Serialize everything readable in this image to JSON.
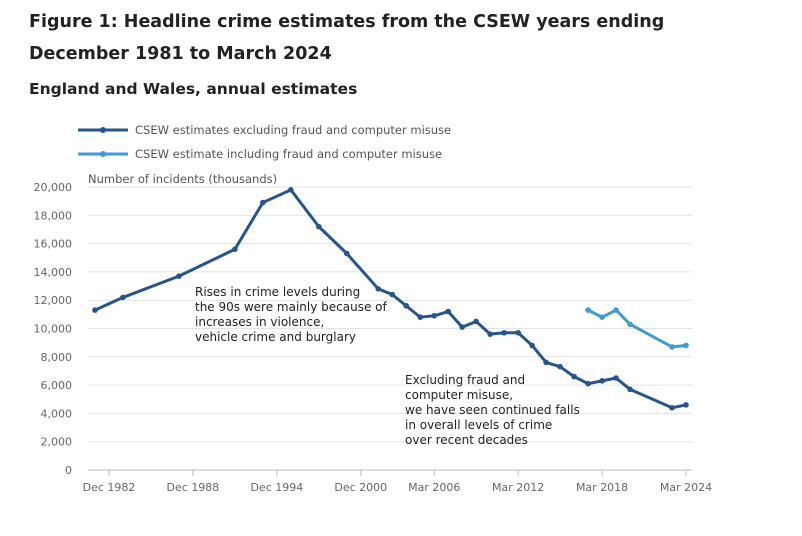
{
  "title": "Figure 1: Headline crime estimates from the CSEW years ending December 1981 to March 2024",
  "subtitle": "England and Wales, annual estimates",
  "chart_data": {
    "type": "line",
    "ylabel": "Number of incidents (thousands)",
    "ylim": [
      0,
      20000
    ],
    "yticks": [
      "0",
      "2,000",
      "4,000",
      "6,000",
      "8,000",
      "10,000",
      "12,000",
      "14,000",
      "16,000",
      "18,000",
      "20,000"
    ],
    "xticks": [
      "Dec 1982",
      "Dec 1988",
      "Dec 1994",
      "Dec 2000",
      "Mar 2006",
      "Mar 2012",
      "Mar 2018",
      "Mar 2024"
    ],
    "grid": true,
    "legend": "top-left",
    "series": [
      {
        "name": "CSEW estimates excluding fraud and computer misuse",
        "color": "#27548a",
        "x": [
          "Dec 1981",
          "Dec 1983",
          "Dec 1987",
          "Dec 1991",
          "Dec 1993",
          "Dec 1995",
          "Dec 1997",
          "Dec 1999",
          "Mar 2002",
          "Mar 2003",
          "Mar 2004",
          "Mar 2005",
          "Mar 2006",
          "Mar 2007",
          "Mar 2008",
          "Mar 2009",
          "Mar 2010",
          "Mar 2011",
          "Mar 2012",
          "Mar 2013",
          "Mar 2014",
          "Mar 2015",
          "Mar 2016",
          "Mar 2017",
          "Mar 2018",
          "Mar 2019",
          "Mar 2020",
          "Mar 2023",
          "Mar 2024"
        ],
        "values": [
          11300,
          12200,
          13700,
          15600,
          18900,
          19800,
          17200,
          15300,
          12800,
          12400,
          11600,
          10800,
          10900,
          11200,
          10100,
          10500,
          9600,
          9700,
          9700,
          8800,
          7600,
          7300,
          6600,
          6100,
          6300,
          6500,
          5700,
          4400,
          4600
        ]
      },
      {
        "name": "CSEW estimate including fraud and computer misuse",
        "color": "#3f9bd1",
        "x": [
          "Mar 2017",
          "Mar 2018",
          "Mar 2019",
          "Mar 2020",
          "Mar 2023",
          "Mar 2024"
        ],
        "values": [
          11300,
          10800,
          11300,
          10300,
          8700,
          8800
        ]
      }
    ],
    "annotations": [
      {
        "lines": [
          "Rises in crime levels during",
          "the 90s were mainly because of",
          "increases in violence,",
          "vehicle crime and burglary"
        ]
      },
      {
        "lines": [
          "Excluding fraud and",
          "computer misuse,",
          "we have seen continued falls",
          "in overall levels of crime",
          "over recent decades"
        ]
      }
    ]
  }
}
